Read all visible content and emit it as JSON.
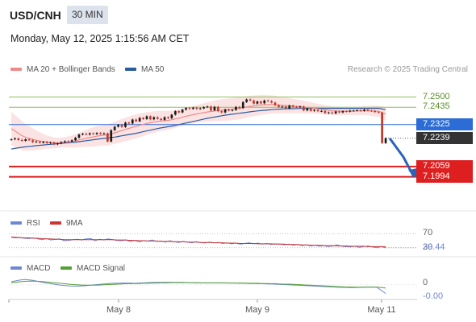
{
  "header": {
    "symbol": "USD/CNH",
    "timeframe": "30 MIN",
    "datetime": "Monday, May 12, 2025 1:15:56 AM CET"
  },
  "legend": {
    "ma20_bb": "MA 20 + Bollinger Bands",
    "ma50": "MA 50",
    "credit": "Research © 2025 Trading Central",
    "rsi": "RSI",
    "rsi_ma": "9MA",
    "macd": "MACD",
    "macd_signal": "MACD Signal"
  },
  "colors": {
    "ma20": "#f08a8a",
    "ma50": "#2b5b9e",
    "bollinger_fill": "#fbd9d9",
    "up_candle": "#1b1b1b",
    "down_candle": "#c0392b",
    "resistance": "#8fbf5a",
    "pivot": "#2b6cd6",
    "support": "#dd1f1f",
    "current": "#333333",
    "arrow": "#2b63b8",
    "rsi": "#6f86d6",
    "rsi_ma": "#cc3333",
    "macd": "#6f86d6",
    "macd_signal": "#55a030"
  },
  "chart_data": [
    {
      "type": "candlestick",
      "panel": "price",
      "x_labels": [
        "May 8",
        "May 9",
        "May 11"
      ],
      "ylim": [
        7.188,
        7.262
      ],
      "levels": [
        {
          "label": "7.2500",
          "value": 7.25,
          "kind": "resistance"
        },
        {
          "label": "7.2435",
          "value": 7.2435,
          "kind": "resistance"
        },
        {
          "label": "7.2325",
          "value": 7.2325,
          "kind": "pivot"
        },
        {
          "label": "7.2239",
          "value": 7.2239,
          "kind": "current"
        },
        {
          "label": "7.2059",
          "value": 7.2059,
          "kind": "support"
        },
        {
          "label": "7.1994",
          "value": 7.1994,
          "kind": "support"
        }
      ],
      "close": [
        7.2232,
        7.2238,
        7.2228,
        7.2222,
        7.2232,
        7.2226,
        7.2214,
        7.2218,
        7.221,
        7.2216,
        7.2208,
        7.2212,
        7.22,
        7.2206,
        7.2214,
        7.222,
        7.2218,
        7.2226,
        7.2242,
        7.2262,
        7.2268,
        7.2262,
        7.227,
        7.2265,
        7.2272,
        7.2266,
        7.227,
        7.2218,
        7.229,
        7.2312,
        7.2323,
        7.231,
        7.2338,
        7.2332,
        7.2357,
        7.2346,
        7.2368,
        7.236,
        7.2378,
        7.2358,
        7.2372,
        7.2362,
        7.2355,
        7.2372,
        7.2366,
        7.2388,
        7.241,
        7.2402,
        7.242,
        7.243,
        7.2425,
        7.2432,
        7.2425,
        7.2428,
        7.2436,
        7.244,
        7.2415,
        7.2438,
        7.241,
        7.2402,
        7.2421,
        7.2414,
        7.2418,
        7.2437,
        7.243,
        7.2468,
        7.2485,
        7.2478,
        7.2458,
        7.2472,
        7.246,
        7.2478,
        7.2474,
        7.2465,
        7.2448,
        7.2437,
        7.244,
        7.2428,
        7.2446,
        7.2438,
        7.2436,
        7.244,
        7.2415,
        7.2426,
        7.2412,
        7.2418,
        7.241,
        7.2412,
        7.2398,
        7.2402,
        7.2396,
        7.2408,
        7.2402,
        7.241,
        7.2408,
        7.2414,
        7.2414,
        7.2416,
        7.2412,
        7.242,
        7.2414,
        7.2412,
        7.2405,
        7.2402,
        7.2208,
        7.2239
      ],
      "ma20": [
        7.23,
        7.2285,
        7.227,
        7.2255,
        7.2245,
        7.2238,
        7.2232,
        7.2226,
        7.2221,
        7.2218,
        7.2215,
        7.2212,
        7.221,
        7.221,
        7.2211,
        7.2213,
        7.2215,
        7.2218,
        7.2222,
        7.2228,
        7.2233,
        7.2238,
        7.2243,
        7.2247,
        7.2252,
        7.2255,
        7.2258,
        7.226,
        7.2266,
        7.2273,
        7.228,
        7.2287,
        7.2295,
        7.2301,
        7.2308,
        7.2314,
        7.232,
        7.2326,
        7.2332,
        7.2337,
        7.2341,
        7.2345,
        7.2348,
        7.235,
        7.2352,
        7.2356,
        7.2361,
        7.2366,
        7.2372,
        7.2378,
        7.2383,
        7.2388,
        7.2393,
        7.2397,
        7.2401,
        7.2405,
        7.2408,
        7.2412,
        7.2415,
        7.2417,
        7.2419,
        7.2421,
        7.2423,
        7.2426,
        7.2428,
        7.2432,
        7.2437,
        7.2441,
        7.2444,
        7.2447,
        7.2449,
        7.2451,
        7.2452,
        7.2453,
        7.2452,
        7.245,
        7.2448,
        7.2446,
        7.2445,
        7.2443,
        7.2441,
        7.2439,
        7.2436,
        7.2434,
        7.2431,
        7.2428,
        7.2425,
        7.2422,
        7.2419,
        7.2416,
        7.2413,
        7.2412,
        7.2411,
        7.241,
        7.241,
        7.241,
        7.2411,
        7.2412,
        7.2412,
        7.2413,
        7.2413,
        7.2412,
        7.2411,
        7.241,
        7.24,
        7.2393
      ],
      "ma50": [
        7.217,
        7.2174,
        7.2178,
        7.2181,
        7.2184,
        7.2187,
        7.2189,
        7.2192,
        7.2194,
        7.2196,
        7.2198,
        7.22,
        7.2202,
        7.2204,
        7.2206,
        7.2208,
        7.221,
        7.2212,
        7.2214,
        7.2217,
        7.222,
        7.2223,
        7.2226,
        7.2229,
        7.2232,
        7.2235,
        7.2238,
        7.224,
        7.2243,
        7.2246,
        7.225,
        7.2254,
        7.2258,
        7.2262,
        7.2266,
        7.227,
        7.2275,
        7.228,
        7.2285,
        7.229,
        7.2295,
        7.23,
        7.2304,
        7.2308,
        7.2312,
        7.2316,
        7.232,
        7.2325,
        7.233,
        7.2335,
        7.234,
        7.2345,
        7.235,
        7.2355,
        7.236,
        7.2365,
        7.2369,
        7.2373,
        7.2377,
        7.2381,
        7.2385,
        7.2388,
        7.2391,
        7.2394,
        7.2397,
        7.24,
        7.2403,
        7.2406,
        7.2409,
        7.2412,
        7.2414,
        7.2416,
        7.2418,
        7.242,
        7.2422,
        7.2423,
        7.2424,
        7.2425,
        7.2426,
        7.2426,
        7.2427,
        7.2427,
        7.2427,
        7.2428,
        7.2428,
        7.2428,
        7.2428,
        7.2428,
        7.2428,
        7.2428,
        7.2428,
        7.2428,
        7.2428,
        7.2428,
        7.2428,
        7.2428,
        7.2428,
        7.2428,
        7.2428,
        7.2428,
        7.2428,
        7.2428,
        7.2428,
        7.2428,
        7.2424,
        7.242
      ],
      "bb_width": [
        0.0105,
        0.0102,
        0.0098,
        0.0092,
        0.0085,
        0.0078,
        0.007,
        0.0062,
        0.0055,
        0.0048,
        0.0042,
        0.0038,
        0.0035,
        0.0033,
        0.0032,
        0.0033,
        0.0035,
        0.0038,
        0.0042,
        0.0046,
        0.005,
        0.0054,
        0.0058,
        0.0061,
        0.0063,
        0.0065,
        0.0066,
        0.0067,
        0.0068,
        0.007,
        0.0072,
        0.0074,
        0.0075,
        0.0076,
        0.0076,
        0.0076,
        0.0075,
        0.0074,
        0.0072,
        0.007,
        0.0068,
        0.0066,
        0.0064,
        0.0062,
        0.006,
        0.0058,
        0.0056,
        0.0055,
        0.0054,
        0.0054,
        0.0054,
        0.0055,
        0.0056,
        0.0058,
        0.006,
        0.0062,
        0.0064,
        0.0066,
        0.0068,
        0.0069,
        0.007,
        0.007,
        0.007,
        0.007,
        0.007,
        0.0069,
        0.0068,
        0.0067,
        0.0066,
        0.0065,
        0.0064,
        0.0062,
        0.006,
        0.0058,
        0.0056,
        0.0054,
        0.0052,
        0.005,
        0.0048,
        0.0046,
        0.0044,
        0.0042,
        0.004,
        0.0038,
        0.0036,
        0.0034,
        0.0032,
        0.003,
        0.0029,
        0.0028,
        0.0027,
        0.0026,
        0.0026,
        0.0025,
        0.0025,
        0.0025,
        0.0025,
        0.0026,
        0.0027,
        0.0028,
        0.003,
        0.0032,
        0.0034,
        0.0036,
        0.004,
        0.0045
      ],
      "forecast_path": [
        7.2239,
        7.212,
        7.1994
      ]
    },
    {
      "type": "line",
      "panel": "rsi",
      "ylim": [
        20,
        80
      ],
      "levels": [
        {
          "label": "70",
          "value": 70
        },
        {
          "label": "30",
          "value": 30
        }
      ],
      "current_label": "29.44",
      "series": [
        {
          "key": "rsi",
          "name": "RSI",
          "values": [
            60,
            58,
            59,
            57,
            56,
            58,
            55,
            53,
            56,
            52,
            54,
            55,
            50,
            51,
            53,
            54,
            52,
            55,
            56,
            50,
            54,
            52,
            55,
            53,
            51,
            50,
            52,
            48,
            51,
            47,
            50,
            49,
            52,
            48,
            49,
            46,
            50,
            47,
            45,
            48,
            46,
            44,
            47,
            45,
            43,
            46,
            44,
            45,
            42,
            44,
            41,
            43,
            40,
            42,
            44,
            41,
            43,
            40,
            42,
            39,
            41,
            40,
            38,
            40,
            37,
            39,
            36,
            38,
            35,
            37,
            34,
            36,
            33,
            35,
            38,
            34,
            33,
            32,
            34,
            31,
            33,
            35,
            32,
            30,
            33,
            29.44
          ]
        },
        {
          "key": "rsi_ma",
          "name": "9MA",
          "values": [
            61,
            60,
            59,
            58,
            58,
            57,
            57,
            56,
            55,
            55,
            54,
            54,
            53,
            53,
            53,
            53,
            53,
            53,
            53,
            53,
            53,
            53,
            53,
            53,
            52,
            52,
            52,
            51,
            51,
            50,
            50,
            49,
            49,
            49,
            48,
            48,
            48,
            47,
            47,
            47,
            46,
            46,
            46,
            45,
            45,
            45,
            44,
            44,
            44,
            43,
            43,
            43,
            42,
            42,
            42,
            42,
            41,
            41,
            41,
            41,
            40,
            40,
            40,
            39,
            39,
            39,
            38,
            38,
            37,
            37,
            37,
            36,
            36,
            36,
            35,
            35,
            35,
            34,
            34,
            34,
            34,
            33,
            33,
            33,
            33,
            33
          ]
        }
      ]
    },
    {
      "type": "line",
      "panel": "macd",
      "ylim": [
        -0.006,
        0.004
      ],
      "levels": [
        {
          "label": "0",
          "value": 0
        }
      ],
      "current_label": "-0.00",
      "series": [
        {
          "key": "macd",
          "name": "MACD",
          "values": [
            0.0014,
            0.0018,
            0.0022,
            0.0024,
            0.0023,
            0.002,
            0.0016,
            0.0012,
            0.0008,
            0.0005,
            0.0002,
            -0.0001,
            -0.0003,
            -0.0005,
            -0.0006,
            -0.0006,
            -0.0005,
            -0.0004,
            -0.0002,
            0.0,
            0.0002,
            0.0004,
            0.0006,
            0.0007,
            0.0007,
            0.0008,
            0.0008,
            0.0008,
            0.0007,
            0.0008,
            0.0009,
            0.001,
            0.0011,
            0.0011,
            0.0011,
            0.0012,
            0.0012,
            0.0011,
            0.0011,
            0.0011,
            0.001,
            0.001,
            0.0009,
            0.0009,
            0.0009,
            0.0008,
            0.0009,
            0.0009,
            0.0009,
            0.0008,
            0.0008,
            0.0008,
            0.0007,
            0.0007,
            0.0006,
            0.0006,
            0.0005,
            0.0005,
            0.0004,
            0.0004,
            0.0003,
            0.0002,
            0.0001,
            0.0,
            -0.0001,
            -0.0002,
            -0.0003,
            -0.0004,
            -0.0005,
            -0.0006,
            -0.0007,
            -0.0008,
            -0.0009,
            -0.001,
            -0.0011,
            -0.0012,
            -0.0012,
            -0.0013,
            -0.0013,
            -0.0012,
            -0.0011,
            -0.001,
            -0.001,
            -0.0011,
            -0.0025,
            -0.004
          ]
        },
        {
          "key": "macd_signal",
          "name": "MACD Signal",
          "values": [
            0.001,
            0.0012,
            0.0014,
            0.0016,
            0.0017,
            0.0017,
            0.0016,
            0.0015,
            0.0013,
            0.0011,
            0.0009,
            0.0007,
            0.0005,
            0.0003,
            0.0001,
            0.0,
            -0.0001,
            -0.0002,
            -0.0002,
            -0.0002,
            -0.0001,
            0.0,
            0.0001,
            0.0002,
            0.0003,
            0.0004,
            0.0005,
            0.0005,
            0.0006,
            0.0006,
            0.0007,
            0.0007,
            0.0008,
            0.0008,
            0.0009,
            0.0009,
            0.001,
            0.001,
            0.001,
            0.001,
            0.001,
            0.001,
            0.001,
            0.0009,
            0.0009,
            0.0009,
            0.0009,
            0.0009,
            0.0009,
            0.0009,
            0.0008,
            0.0008,
            0.0008,
            0.0008,
            0.0007,
            0.0007,
            0.0007,
            0.0006,
            0.0006,
            0.0005,
            0.0005,
            0.0004,
            0.0003,
            0.0003,
            0.0002,
            0.0001,
            0.0,
            -0.0001,
            -0.0002,
            -0.0003,
            -0.0004,
            -0.0005,
            -0.0006,
            -0.0007,
            -0.0008,
            -0.0009,
            -0.001,
            -0.001,
            -0.0011,
            -0.0011,
            -0.0011,
            -0.0011,
            -0.0011,
            -0.0011,
            -0.0012,
            -0.0015
          ]
        }
      ]
    }
  ]
}
